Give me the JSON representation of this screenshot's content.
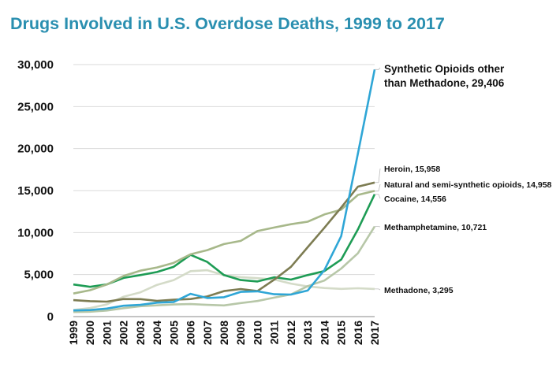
{
  "title": "Drugs Involved in U.S. Overdose Deaths, 1999 to 2017",
  "chart_data": {
    "type": "line",
    "title": "Drugs Involved in U.S. Overdose Deaths, 1999 to 2017",
    "xlabel": "",
    "ylabel": "",
    "ylim": [
      0,
      30000
    ],
    "yticks": [
      "0",
      "5,000",
      "10,000",
      "15,000",
      "20,000",
      "25,000",
      "30,000"
    ],
    "ytick_values": [
      0,
      5000,
      10000,
      15000,
      20000,
      25000,
      30000
    ],
    "grid": "horizontal",
    "x": [
      "1999",
      "2000",
      "2001",
      "2002",
      "2003",
      "2004",
      "2005",
      "2006",
      "2007",
      "2008",
      "2009",
      "2010",
      "2011",
      "2012",
      "2013",
      "2014",
      "2015",
      "2016",
      "2017"
    ],
    "series": [
      {
        "name": "Synthetic Opioids other than Methadone",
        "label_lines": [
          "Synthetic Opioids other",
          "than Methadone, 29,406"
        ],
        "color": "#2fa6d6",
        "values": [
          730,
          782,
          957,
          1295,
          1400,
          1664,
          1742,
          2707,
          2213,
          2306,
          2946,
          3007,
          2666,
          2628,
          3105,
          5544,
          9580,
          19413,
          29406
        ]
      },
      {
        "name": "Heroin",
        "label_lines": [
          "Heroin, 15,958"
        ],
        "color": "#7d7c52",
        "values": [
          1960,
          1842,
          1779,
          2089,
          2080,
          1878,
          2009,
          2088,
          2399,
          3041,
          3278,
          3036,
          4397,
          5925,
          8257,
          10574,
          12989,
          15469,
          15958
        ]
      },
      {
        "name": "Natural and semi-synthetic opioids",
        "label_lines": [
          "Natural and semi-synthetic opioids, 14,958"
        ],
        "color": "#a7b88a",
        "values": [
          2749,
          3141,
          3819,
          4842,
          5466,
          5851,
          6406,
          7420,
          7910,
          8632,
          9011,
          10178,
          10600,
          11000,
          11300,
          12159,
          12727,
          14487,
          14958
        ]
      },
      {
        "name": "Cocaine",
        "label_lines": [
          "Cocaine, 14,556"
        ],
        "color": "#1e9c55",
        "values": [
          3822,
          3544,
          3833,
          4599,
          4943,
          5302,
          5932,
          7352,
          6504,
          4944,
          4350,
          4183,
          4681,
          4404,
          4944,
          5415,
          6784,
          10375,
          14556
        ]
      },
      {
        "name": "Methamphetamine",
        "label_lines": [
          "Methamphetamine, 10,721"
        ],
        "color": "#b7c7a8",
        "values": [
          547,
          578,
          725,
          1005,
          1237,
          1336,
          1445,
          1486,
          1398,
          1332,
          1615,
          1854,
          2264,
          2635,
          3627,
          4298,
          5716,
          7542,
          10721
        ]
      },
      {
        "name": "Methadone",
        "label_lines": [
          "Methadone, 3,295"
        ],
        "color": "#d4dbc8",
        "values": [
          784,
          1016,
          1456,
          2368,
          2891,
          3776,
          4349,
          5406,
          5518,
          4924,
          4696,
          4577,
          4418,
          3932,
          3591,
          3400,
          3301,
          3373,
          3295
        ]
      }
    ]
  }
}
